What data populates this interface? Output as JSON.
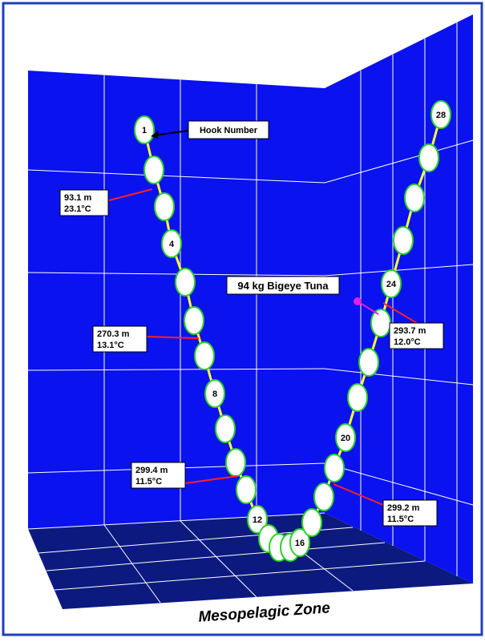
{
  "hook_label_title": "Hook Number",
  "hooks": [
    {
      "number": "1",
      "index": 0
    },
    {
      "number": "4",
      "index": 3
    },
    {
      "number": "8",
      "index": 7
    },
    {
      "number": "12",
      "index": 11
    },
    {
      "number": "16",
      "index": 15
    },
    {
      "number": "20",
      "index": 19
    },
    {
      "number": "24",
      "index": 23
    },
    {
      "number": "28",
      "index": 27
    }
  ],
  "readings": [
    {
      "depth": "93.1 m",
      "temperature": "23.1°C"
    },
    {
      "depth": "270.3 m",
      "temperature": "13.1°C"
    },
    {
      "depth": "299.4 m",
      "temperature": "11.5°C"
    },
    {
      "depth": "299.2 m",
      "temperature": "11.5°C"
    },
    {
      "depth": "293.7 m",
      "temperature": "12.0°C"
    }
  ],
  "catch": "94 kg Bigeye Tuna",
  "zone": "Mesopelagic Zone"
}
